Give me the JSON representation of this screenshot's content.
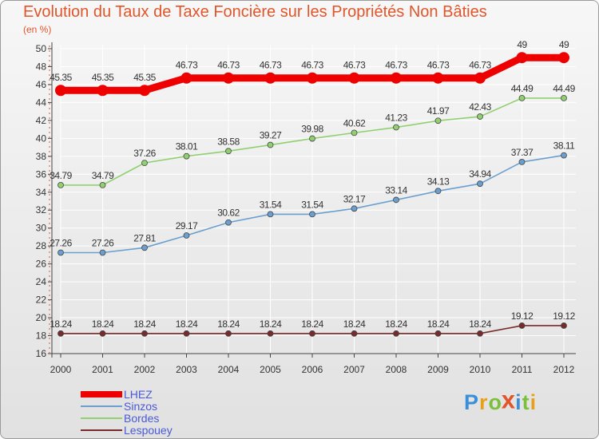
{
  "title": "Evolution du Taux de Taxe Foncière sur les Propriétés Non Bâties",
  "unit": "(en %)",
  "brand": {
    "letters": [
      {
        "ch": "P",
        "color": "#3a8fd8"
      },
      {
        "ch": "r",
        "color": "#e8a01a"
      },
      {
        "ch": "o",
        "color": "#7bbf3a"
      },
      {
        "ch": "x",
        "color": "#e2552a"
      },
      {
        "ch": "i",
        "color": "#3a8fd8"
      },
      {
        "ch": "t",
        "color": "#7bbf3a"
      },
      {
        "ch": "i",
        "color": "#e8a01a"
      }
    ]
  },
  "chart_data": {
    "type": "line",
    "title": "Evolution du Taux de Taxe Foncière sur les Propriétés Non Bâties",
    "ylabel": "(en %)",
    "xlabel": "",
    "x": [
      "2000",
      "2001",
      "2002",
      "2003",
      "2004",
      "2005",
      "2006",
      "2007",
      "2008",
      "2009",
      "2010",
      "2011",
      "2012"
    ],
    "ylim": [
      16,
      50
    ],
    "yticks": [
      16,
      18,
      20,
      22,
      24,
      26,
      28,
      30,
      32,
      34,
      36,
      38,
      40,
      42,
      44,
      46,
      48,
      50
    ],
    "grid": true,
    "legend_position": "bottom-left",
    "series": [
      {
        "name": "LHEZ",
        "color": "#ee0000",
        "thick": true,
        "values": [
          45.35,
          45.35,
          45.35,
          46.73,
          46.73,
          46.73,
          46.73,
          46.73,
          46.73,
          46.73,
          46.73,
          49,
          49
        ],
        "labels": [
          "45.35",
          "45.35",
          "45.35",
          "46.73",
          "46.73",
          "46.73",
          "46.73",
          "46.73",
          "46.73",
          "46.73",
          "46.73",
          "49",
          "49"
        ]
      },
      {
        "name": "Sinzos",
        "color": "#6b9fcf",
        "thick": false,
        "values": [
          27.26,
          27.26,
          27.81,
          29.17,
          30.62,
          31.54,
          31.54,
          32.17,
          33.14,
          34.13,
          34.94,
          37.37,
          38.11
        ],
        "labels": [
          "27.26",
          "27.26",
          "27.81",
          "29.17",
          "30.62",
          "31.54",
          "31.54",
          "32.17",
          "33.14",
          "34.13",
          "34.94",
          "37.37",
          "38.11"
        ]
      },
      {
        "name": "Bordes",
        "color": "#90d070",
        "thick": false,
        "values": [
          34.79,
          34.79,
          37.26,
          38.01,
          38.58,
          39.27,
          39.98,
          40.62,
          41.23,
          41.97,
          42.43,
          44.49,
          44.49
        ],
        "labels": [
          "34.79",
          "34.79",
          "37.26",
          "38.01",
          "38.58",
          "39.27",
          "39.98",
          "40.62",
          "41.23",
          "41.97",
          "42.43",
          "44.49",
          "44.49"
        ]
      },
      {
        "name": "Lespouey",
        "color": "#7a2a2a",
        "thick": false,
        "values": [
          18.24,
          18.24,
          18.24,
          18.24,
          18.24,
          18.24,
          18.24,
          18.24,
          18.24,
          18.24,
          18.24,
          19.12,
          19.12
        ],
        "labels": [
          "18.24",
          "18.24",
          "18.24",
          "18.24",
          "18.24",
          "18.24",
          "18.24",
          "18.24",
          "18.24",
          "18.24",
          "18.24",
          "19.12",
          "19.12"
        ]
      }
    ]
  }
}
